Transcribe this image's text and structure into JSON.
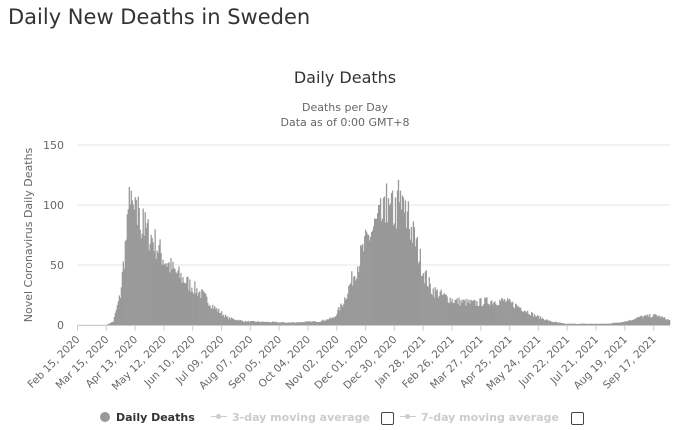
{
  "page": {
    "heading": "Daily New Deaths in Sweden"
  },
  "chart_data": {
    "type": "bar",
    "title": "Daily Deaths",
    "subtitle_lines": [
      "Deaths per Day",
      "Data as of 0:00 GMT+8"
    ],
    "xlabel": "",
    "ylabel": "Novel Coronavirus Daily Deaths",
    "ylim": [
      0,
      150
    ],
    "yticks": [
      0,
      50,
      100,
      150
    ],
    "grid": true,
    "legend_position": "bottom",
    "x_start_date": "Feb 15, 2020",
    "x_end_date": "Oct 03, 2021",
    "x_tick_labels": [
      "Feb 15, 2020",
      "Mar 15, 2020",
      "Apr 13, 2020",
      "May 12, 2020",
      "Jun 10, 2020",
      "Jul 09, 2020",
      "Aug 07, 2020",
      "Sep 05, 2020",
      "Oct 04, 2020",
      "Nov 02, 2020",
      "Dec 01, 2020",
      "Dec 30, 2020",
      "Jan 28, 2021",
      "Feb 26, 2021",
      "Mar 27, 2021",
      "Apr 25, 2021",
      "May 24, 2021",
      "Jun 22, 2021",
      "Jul 21, 2021",
      "Aug 19, 2021",
      "Sep 17, 2021"
    ],
    "series": [
      {
        "name": "Daily Deaths",
        "color": "#999999",
        "profile": [
          [
            "Feb 15, 2020",
            0
          ],
          [
            "Mar 15, 2020",
            0
          ],
          [
            "Mar 22, 2020",
            3
          ],
          [
            "Mar 29, 2020",
            25
          ],
          [
            "Apr 03, 2020",
            65
          ],
          [
            "Apr 08, 2020",
            100
          ],
          [
            "Apr 15, 2020",
            88
          ],
          [
            "Apr 23, 2020",
            80
          ],
          [
            "May 02, 2020",
            70
          ],
          [
            "May 12, 2020",
            55
          ],
          [
            "May 22, 2020",
            45
          ],
          [
            "Jun 05, 2020",
            35
          ],
          [
            "Jun 20, 2020",
            25
          ],
          [
            "Jul 01, 2020",
            15
          ],
          [
            "Jul 15, 2020",
            6
          ],
          [
            "Aug 01, 2020",
            3
          ],
          [
            "Sep 15, 2020",
            2
          ],
          [
            "Oct 15, 2020",
            3
          ],
          [
            "Oct 30, 2020",
            6
          ],
          [
            "Nov 08, 2020",
            18
          ],
          [
            "Nov 15, 2020",
            33
          ],
          [
            "Nov 25, 2020",
            55
          ],
          [
            "Dec 05, 2020",
            75
          ],
          [
            "Dec 15, 2020",
            88
          ],
          [
            "Dec 25, 2020",
            92
          ],
          [
            "Jan 04, 2021",
            97
          ],
          [
            "Jan 12, 2021",
            88
          ],
          [
            "Jan 20, 2021",
            70
          ],
          [
            "Jan 28, 2021",
            45
          ],
          [
            "Feb 05, 2021",
            30
          ],
          [
            "Feb 15, 2021",
            25
          ],
          [
            "Mar 01, 2021",
            20
          ],
          [
            "Mar 20, 2021",
            18
          ],
          [
            "Apr 05, 2021",
            20
          ],
          [
            "Apr 20, 2021",
            20
          ],
          [
            "May 05, 2021",
            15
          ],
          [
            "May 20, 2021",
            8
          ],
          [
            "Jun 05, 2021",
            3
          ],
          [
            "Jun 20, 2021",
            1
          ],
          [
            "Aug 01, 2021",
            1
          ],
          [
            "Aug 20, 2021",
            3
          ],
          [
            "Sep 05, 2021",
            7
          ],
          [
            "Sep 20, 2021",
            8
          ],
          [
            "Oct 03, 2021",
            4
          ]
        ],
        "spikes": [
          [
            "Apr 07, 2020",
            115
          ],
          [
            "Apr 09, 2020",
            112
          ],
          [
            "Apr 16, 2020",
            107
          ],
          [
            "Apr 21, 2020",
            97
          ],
          [
            "Dec 22, 2020",
            118
          ],
          [
            "Dec 28, 2020",
            112
          ],
          [
            "Jan 03, 2021",
            121
          ],
          [
            "Jan 05, 2021",
            112
          ],
          [
            "Jan 07, 2021",
            108
          ],
          [
            "Jan 13, 2021",
            103
          ]
        ]
      }
    ]
  },
  "legend": {
    "items": [
      {
        "label": "Daily Deaths",
        "active": true,
        "color": "#999999"
      },
      {
        "label": "3-day moving average",
        "active": false,
        "color": "#cccccc"
      },
      {
        "label": "7-day moving average",
        "active": false,
        "color": "#cccccc"
      }
    ]
  }
}
